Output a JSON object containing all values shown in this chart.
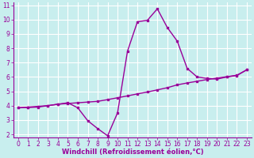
{
  "xlabel": "Windchill (Refroidissement éolien,°C)",
  "xlim": [
    -0.5,
    23.5
  ],
  "ylim": [
    1.8,
    11.2
  ],
  "yticks": [
    2,
    3,
    4,
    5,
    6,
    7,
    8,
    9,
    10,
    11
  ],
  "xticks": [
    0,
    1,
    2,
    3,
    4,
    5,
    6,
    7,
    8,
    9,
    10,
    11,
    12,
    13,
    14,
    15,
    16,
    17,
    18,
    19,
    20,
    21,
    22,
    23
  ],
  "bg_color": "#c8eeee",
  "line_color": "#990099",
  "grid_color": "#b0d8d8",
  "line1_x": [
    0,
    1,
    2,
    3,
    4,
    5,
    6,
    7,
    8,
    9,
    10,
    11,
    12,
    13,
    14,
    15,
    16,
    17,
    18,
    19,
    20,
    21,
    22,
    23
  ],
  "line1_y": [
    3.85,
    3.9,
    3.95,
    4.0,
    4.1,
    4.15,
    4.2,
    4.25,
    4.3,
    4.42,
    4.55,
    4.68,
    4.82,
    4.95,
    5.1,
    5.25,
    5.45,
    5.58,
    5.7,
    5.82,
    5.92,
    6.02,
    6.12,
    6.5
  ],
  "line2_x": [
    0,
    1,
    2,
    3,
    4,
    5,
    6,
    7,
    8,
    9,
    10,
    11,
    12,
    13,
    14,
    15,
    16,
    17,
    18,
    19,
    20,
    21,
    22,
    23
  ],
  "line2_y": [
    3.85,
    3.87,
    3.9,
    4.0,
    4.1,
    4.2,
    3.85,
    2.95,
    2.4,
    1.9,
    3.5,
    7.8,
    9.85,
    9.95,
    10.75,
    9.45,
    8.5,
    6.6,
    6.0,
    5.9,
    5.85,
    6.0,
    6.1,
    6.5
  ],
  "tick_fontsize": 5.5,
  "xlabel_fontsize": 6.0
}
